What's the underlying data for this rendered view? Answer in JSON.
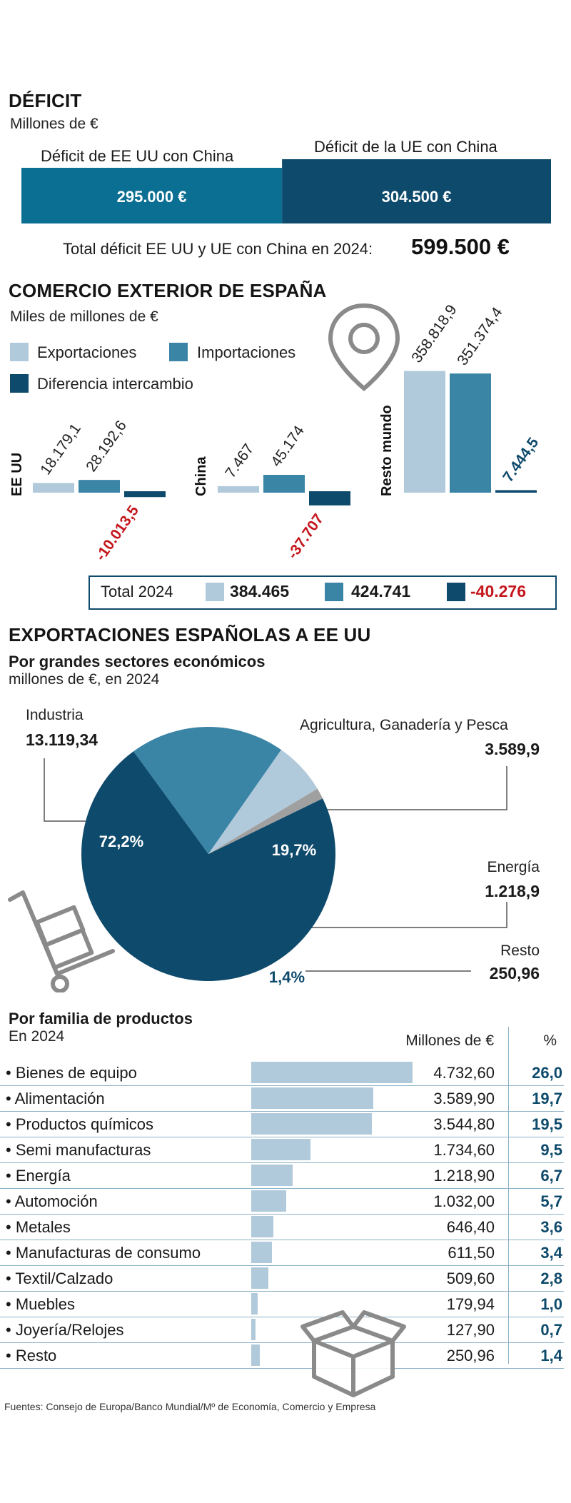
{
  "colors": {
    "export": "#b1cadb",
    "import": "#3a84a6",
    "diff": "#0e4a6b",
    "deficit_us": "#0a6f92",
    "deficit_eu": "#0e4a6b",
    "negative": "#c4161c",
    "resto_slice": "#a0a0a0"
  },
  "deficit": {
    "title": "DÉFICIT",
    "subtitle": "Millones de €",
    "us_label": "Déficit de EE UU con China",
    "eu_label": "Déficit de la UE con China",
    "us_value": "295.000 €",
    "eu_value": "304.500 €",
    "total_label": "Total déficit EE UU y UE con China en 2024:",
    "total_value": "599.500 €"
  },
  "trade": {
    "title": "COMERCIO EXTERIOR DE ESPAÑA",
    "subtitle": "Miles de millones de €",
    "legend": {
      "export": "Exportaciones",
      "import": "Importaciones",
      "diff": "Diferencia intercambio"
    },
    "total_label": "Total 2024",
    "total_export": "384.465",
    "total_import": "424.741",
    "total_diff": "-40.276",
    "icon": "map-pin-icon"
  },
  "exports_us": {
    "title": "EXPORTACIONES ESPAÑOLAS A EE UU",
    "pie_subtitle": "Por grandes sectores económicos",
    "pie_note": "millones de €, en 2024",
    "pie_labels": {
      "industria": "Industria",
      "industria_value": "13.119,34",
      "agri": "Agricultura, Ganadería y Pesca",
      "agri_value": "3.589,9",
      "energia": "Energía",
      "energia_value": "1.218,9",
      "resto": "Resto",
      "resto_value": "250,96"
    },
    "pie_pcts": {
      "industria": "72,2%",
      "agri": "19,7%",
      "energia": "6,7%",
      "resto": "1,4%"
    },
    "table_title": "Por familia de productos",
    "table_note": "En 2024",
    "col_value": "Millones de €",
    "col_pct": "%",
    "rows": [
      {
        "name": "Bienes de equipo",
        "value": "4.732,60",
        "pct": "26,0"
      },
      {
        "name": "Alimentación",
        "value": "3.589,90",
        "pct": "19,7"
      },
      {
        "name": "Productos químicos",
        "value": "3.544,80",
        "pct": "19,5"
      },
      {
        "name": "Semi manufacturas",
        "value": "1.734,60",
        "pct": "9,5"
      },
      {
        "name": "Energía",
        "value": "1.218,90",
        "pct": "6,7"
      },
      {
        "name": "Automoción",
        "value": "1.032,00",
        "pct": "5,7"
      },
      {
        "name": "Metales",
        "value": "646,40",
        "pct": "3,6"
      },
      {
        "name": "Manufacturas de consumo",
        "value": "611,50",
        "pct": "3,4"
      },
      {
        "name": "Textil/Calzado",
        "value": "509,60",
        "pct": "2,8"
      },
      {
        "name": "Muebles",
        "value": "179,94",
        "pct": "1,0"
      },
      {
        "name": "Joyería/Relojes",
        "value": "127,90",
        "pct": "0,7"
      },
      {
        "name": "Resto",
        "value": "250,96",
        "pct": "1,4"
      }
    ],
    "icons": [
      "hand-truck-icon",
      "box-icon"
    ]
  },
  "source": "Fuentes: Consejo de Europa/Banco Mundial/Mº de Economía, Comercio y Empresa",
  "chart_data": [
    {
      "type": "bar",
      "title": "DÉFICIT",
      "subtitle": "Millones de €",
      "categories": [
        "Déficit de EE UU con China",
        "Déficit de la UE con China"
      ],
      "values": [
        295000,
        304500
      ]
    },
    {
      "type": "bar",
      "title": "COMERCIO EXTERIOR DE ESPAÑA",
      "subtitle": "Miles de millones de €",
      "categories": [
        "EE UU",
        "China",
        "Resto mundo"
      ],
      "series": [
        {
          "name": "Exportaciones",
          "values": [
            18179.1,
            7467,
            358818.9
          ],
          "labels": [
            "18.179,1",
            "7.467",
            "358.818,9"
          ]
        },
        {
          "name": "Importaciones",
          "values": [
            28192.6,
            45174,
            351374.4
          ],
          "labels": [
            "28.192,6",
            "45.174",
            "351.374,4"
          ]
        },
        {
          "name": "Diferencia intercambio",
          "values": [
            -10013.5,
            -37707,
            7444.5
          ],
          "labels": [
            "-10.013,5",
            "-37.707",
            "7.444,5"
          ]
        }
      ]
    },
    {
      "type": "pie",
      "title": "EXPORTACIONES ESPAÑOLAS A EE UU",
      "subtitle": "Por grandes sectores económicos",
      "categories": [
        "Industria",
        "Agricultura, Ganadería y Pesca",
        "Energía",
        "Resto"
      ],
      "values": [
        13119.34,
        3589.9,
        1218.9,
        250.96
      ],
      "percents": [
        72.2,
        19.7,
        6.7,
        1.4
      ]
    },
    {
      "type": "bar",
      "title": "Por familia de productos",
      "subtitle": "En 2024",
      "categories": [
        "Bienes de equipo",
        "Alimentación",
        "Productos químicos",
        "Semi manufacturas",
        "Energía",
        "Automoción",
        "Metales",
        "Manufacturas de consumo",
        "Textil/Calzado",
        "Muebles",
        "Joyería/Relojes",
        "Resto"
      ],
      "values": [
        4732.6,
        3589.9,
        3544.8,
        1734.6,
        1218.9,
        1032.0,
        646.4,
        611.5,
        509.6,
        179.94,
        127.9,
        250.96
      ],
      "percents": [
        26.0,
        19.7,
        19.5,
        9.5,
        6.7,
        5.7,
        3.6,
        3.4,
        2.8,
        1.0,
        0.7,
        1.4
      ]
    }
  ]
}
